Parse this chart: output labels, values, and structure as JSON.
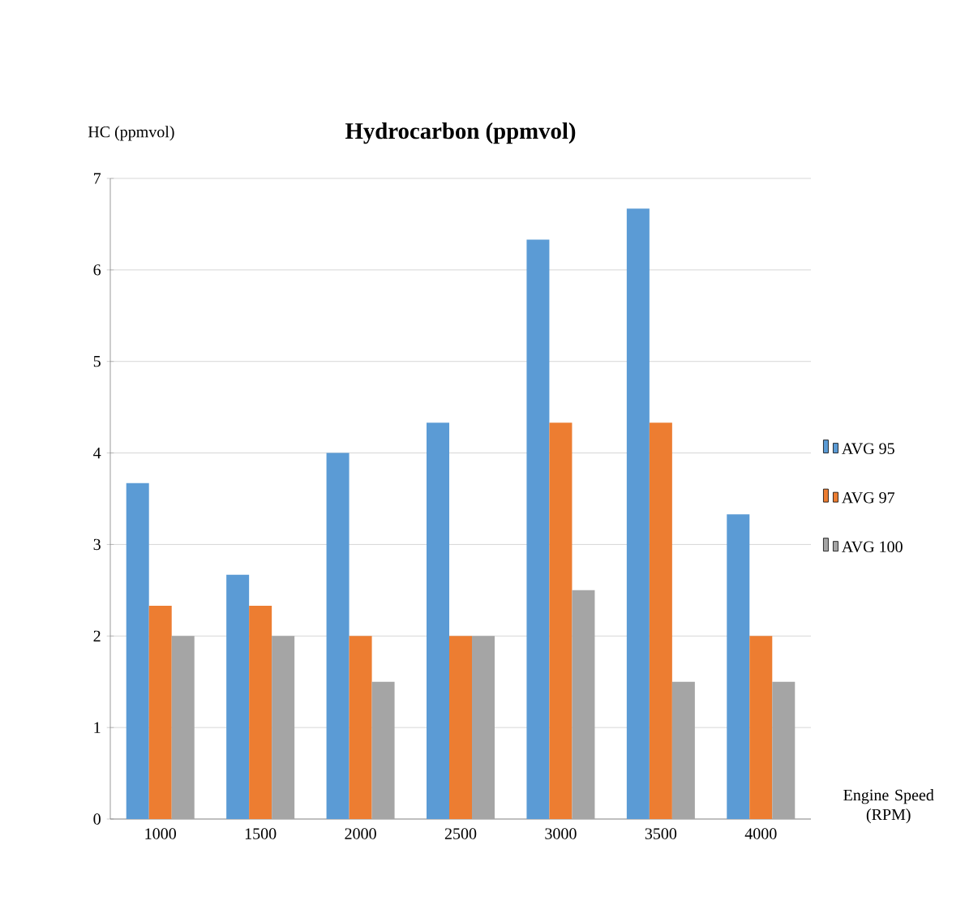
{
  "chart_data": {
    "type": "bar",
    "title": "Hydrocarbon (ppmvol)",
    "ylabel": "HC (ppmvol)",
    "xlabel": "Engine Speed (RPM)",
    "categories": [
      "1000",
      "1500",
      "2000",
      "2500",
      "3000",
      "3500",
      "4000"
    ],
    "series": [
      {
        "name": "AVG 95",
        "color": "#5b9bd5",
        "values": [
          3.67,
          2.67,
          4.0,
          4.33,
          6.33,
          6.67,
          3.33
        ]
      },
      {
        "name": "AVG 97",
        "color": "#ed7d31",
        "values": [
          2.33,
          2.33,
          2.0,
          2.0,
          4.33,
          4.33,
          2.0
        ]
      },
      {
        "name": "AVG 100",
        "color": "#a5a5a5",
        "values": [
          2.0,
          2.0,
          1.5,
          2.0,
          2.5,
          1.5,
          1.5
        ]
      }
    ],
    "ylim": [
      0,
      7
    ],
    "yticks": [
      0,
      1,
      2,
      3,
      4,
      5,
      6,
      7
    ],
    "grid": "y",
    "legend": "right"
  }
}
